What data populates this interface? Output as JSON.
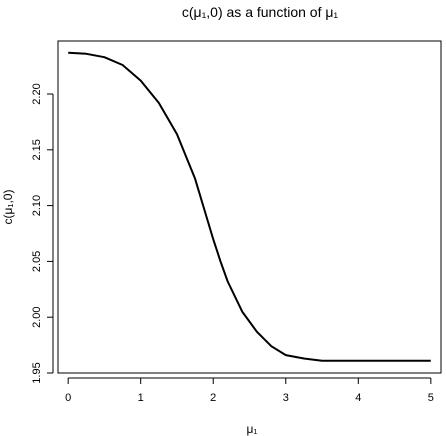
{
  "chart_data": {
    "type": "line",
    "title": "c(μ₁,0) as a function of μ₁",
    "xlabel": "μ₁",
    "ylabel": "c(μ₁,0)",
    "xlim": [
      -0.14,
      5.14
    ],
    "ylim": [
      1.95,
      2.2475
    ],
    "xticks": [
      0,
      1,
      2,
      3,
      4,
      5
    ],
    "xtick_labels": [
      "0",
      "1",
      "2",
      "3",
      "4",
      "5"
    ],
    "yticks": [
      1.95,
      2.0,
      2.05,
      2.1,
      2.15,
      2.2
    ],
    "ytick_labels": [
      "1.95",
      "2.00",
      "2.05",
      "2.10",
      "2.15",
      "2.20"
    ],
    "grid": false,
    "series": [
      {
        "color": "#000000",
        "x": [
          0,
          0.25,
          0.5,
          0.75,
          1.0,
          1.25,
          1.5,
          1.75,
          2.0,
          2.1,
          2.2,
          2.4,
          2.6,
          2.8,
          3.0,
          3.25,
          3.5,
          4.0,
          4.5,
          5.0
        ],
        "y": [
          2.237,
          2.236,
          2.233,
          2.226,
          2.212,
          2.192,
          2.164,
          2.124,
          2.07,
          2.05,
          2.032,
          2.005,
          1.987,
          1.974,
          1.966,
          1.963,
          1.961,
          1.961,
          1.961,
          1.961
        ]
      }
    ]
  }
}
